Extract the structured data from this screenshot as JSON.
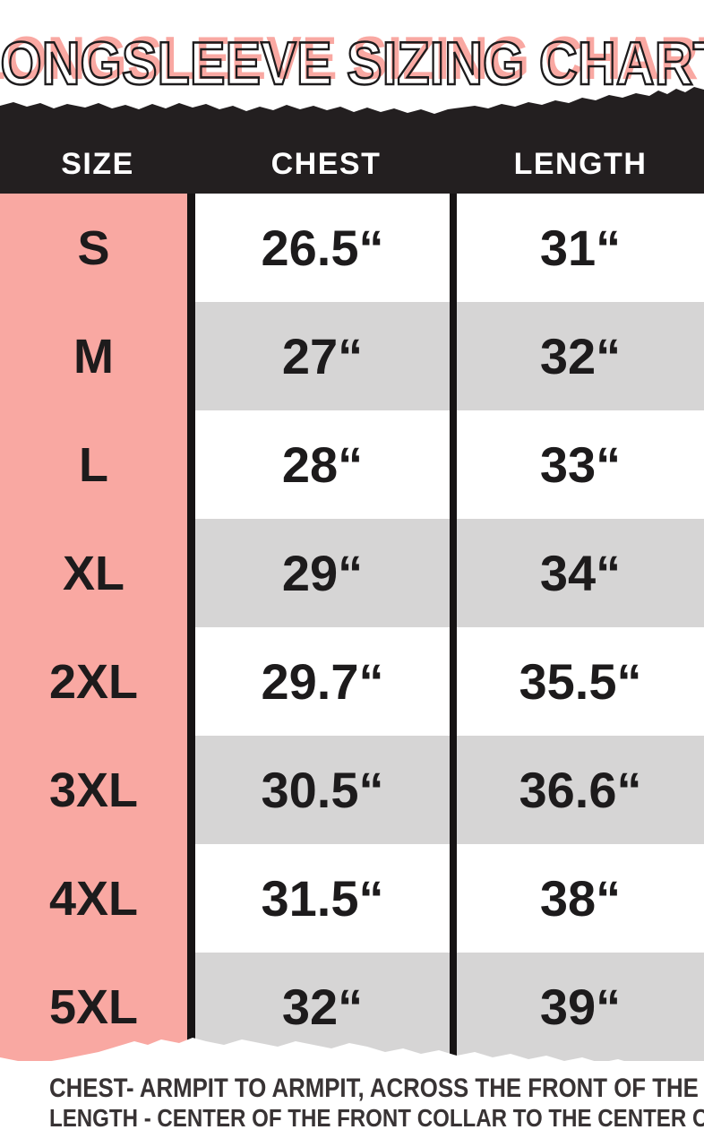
{
  "title": "LONGSLEEVE SIZING CHART",
  "colors": {
    "accent_pink": "#f9a8a2",
    "band_black": "#231f20",
    "row_gray": "#d6d5d5",
    "row_white": "#ffffff",
    "divider_black": "#161314",
    "value_text": "#1d1b1c",
    "footer_text": "#383334"
  },
  "table": {
    "headers": [
      {
        "label": "SIZE"
      },
      {
        "label": "CHEST"
      },
      {
        "label": "LENGTH"
      }
    ],
    "rows": [
      {
        "size": "S",
        "chest": "26.5“",
        "length": "31“"
      },
      {
        "size": "M",
        "chest": "27“",
        "length": "32“"
      },
      {
        "size": "L",
        "chest": "28“",
        "length": "33“"
      },
      {
        "size": "XL",
        "chest": "29“",
        "length": "34“"
      },
      {
        "size": "2XL",
        "chest": "29.7“",
        "length": "35.5“"
      },
      {
        "size": "3XL",
        "chest": "30.5“",
        "length": "36.6“"
      },
      {
        "size": "4XL",
        "chest": "31.5“",
        "length": "38“"
      },
      {
        "size": "5XL",
        "chest": "32“",
        "length": "39“"
      }
    ]
  },
  "footer": {
    "line1": "CHEST- ARMPIT TO ARMPIT, ACROSS THE FRONT OF THE CHEST",
    "line2": "LENGTH - CENTER OF THE FRONT COLLAR TO THE CENTER OF THE TAIL"
  }
}
